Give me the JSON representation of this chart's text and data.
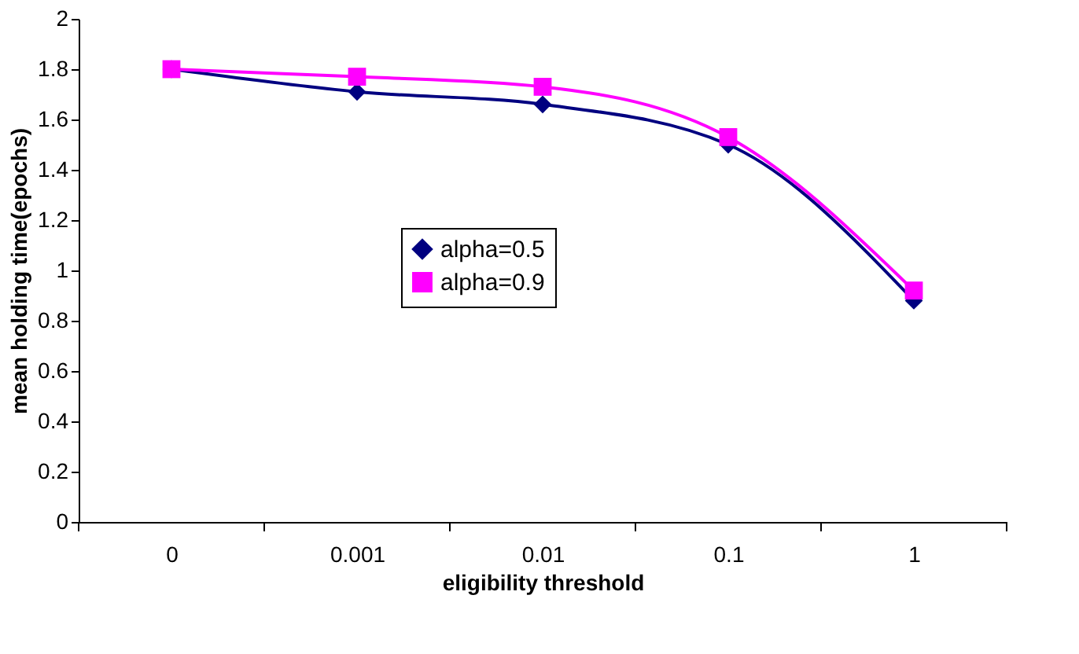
{
  "chart_data": {
    "type": "line",
    "xlabel": "eligibility threshold",
    "ylabel": "mean holding time(epochs)",
    "categories": [
      "0",
      "0.001",
      "0.01",
      "0.1",
      "1"
    ],
    "series": [
      {
        "name": "alpha=0.5",
        "color": "#000080",
        "marker": "diamond",
        "values": [
          1.8,
          1.71,
          1.66,
          1.5,
          0.88
        ]
      },
      {
        "name": "alpha=0.9",
        "color": "#ff00ff",
        "marker": "square",
        "values": [
          1.8,
          1.77,
          1.73,
          1.53,
          0.92
        ]
      }
    ],
    "ylim": [
      0,
      2
    ],
    "yticks": [
      0,
      0.2,
      0.4,
      0.6,
      0.8,
      1,
      1.2,
      1.4,
      1.6,
      1.8,
      2
    ],
    "grid": false,
    "legend": "center",
    "line_style": "solid"
  }
}
